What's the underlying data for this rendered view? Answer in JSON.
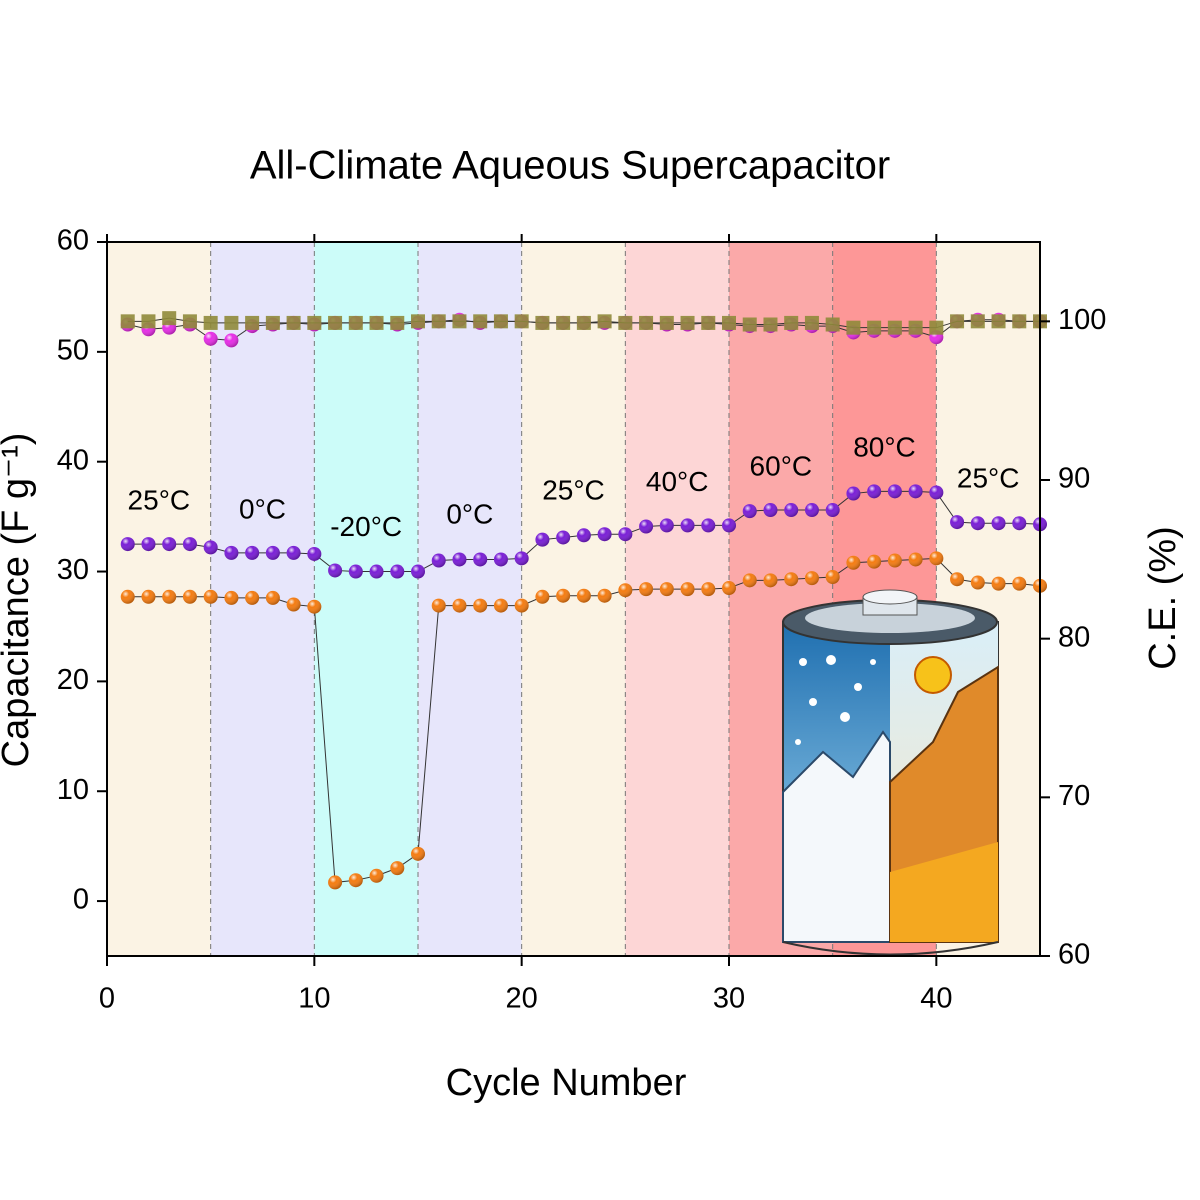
{
  "chart_data": {
    "type": "scatter",
    "title": "All-Climate Aqueous Supercapacitor",
    "x_label": "Cycle Number",
    "y_label": "Capacitance (F g⁻¹)",
    "y2_label": "C.E. (%)",
    "xlim": [
      0,
      45
    ],
    "xticks": [
      0,
      10,
      20,
      30,
      40
    ],
    "ylim": [
      -5,
      60
    ],
    "yticks": [
      0,
      10,
      20,
      30,
      40,
      50,
      60
    ],
    "y2lim": [
      60,
      105
    ],
    "y2ticks": [
      60,
      70,
      80,
      90,
      100
    ],
    "regions": [
      {
        "from": 0,
        "to": 5,
        "color": "#fbf3e4",
        "label": "25°C"
      },
      {
        "from": 5,
        "to": 10,
        "color": "#e7e6fb",
        "label": "0°C"
      },
      {
        "from": 10,
        "to": 15,
        "color": "#ccfcf9",
        "label": "-20°C"
      },
      {
        "from": 15,
        "to": 20,
        "color": "#e7e6fb",
        "label": "0°C"
      },
      {
        "from": 20,
        "to": 25,
        "color": "#fbf3e4",
        "label": "25°C"
      },
      {
        "from": 25,
        "to": 30,
        "color": "#fdd6d6",
        "label": "40°C"
      },
      {
        "from": 30,
        "to": 35,
        "color": "#fba9a9",
        "label": "60°C"
      },
      {
        "from": 35,
        "to": 40,
        "color": "#fd9797",
        "label": "80°C"
      },
      {
        "from": 40,
        "to": 45,
        "color": "#fbf3e4",
        "label": "25°C"
      }
    ],
    "x": [
      1,
      2,
      3,
      4,
      5,
      6,
      7,
      8,
      9,
      10,
      11,
      12,
      13,
      14,
      15,
      16,
      17,
      18,
      19,
      20,
      21,
      22,
      23,
      24,
      25,
      26,
      27,
      28,
      29,
      30,
      31,
      32,
      33,
      34,
      35,
      36,
      37,
      38,
      39,
      40,
      41,
      42,
      43,
      44,
      45
    ],
    "series": [
      {
        "color": "#7a1fd6",
        "marker": "circle",
        "values": [
          32.5,
          32.5,
          32.5,
          32.5,
          32.2,
          31.7,
          31.7,
          31.7,
          31.7,
          31.6,
          30.1,
          30.0,
          30.0,
          30.0,
          30.0,
          31.0,
          31.1,
          31.1,
          31.1,
          31.2,
          32.9,
          33.1,
          33.3,
          33.4,
          33.4,
          34.1,
          34.2,
          34.2,
          34.2,
          34.2,
          35.5,
          35.6,
          35.6,
          35.6,
          35.6,
          37.1,
          37.3,
          37.3,
          37.3,
          37.2,
          34.5,
          34.4,
          34.4,
          34.4,
          34.3
        ]
      },
      {
        "color": "#f47c12",
        "marker": "circle",
        "values": [
          27.7,
          27.7,
          27.7,
          27.7,
          27.7,
          27.6,
          27.6,
          27.6,
          27.0,
          26.8,
          1.7,
          1.9,
          2.3,
          3.0,
          4.3,
          26.9,
          26.9,
          26.9,
          26.9,
          26.9,
          27.7,
          27.8,
          27.8,
          27.8,
          28.3,
          28.4,
          28.4,
          28.4,
          28.4,
          28.5,
          29.2,
          29.2,
          29.3,
          29.4,
          29.5,
          30.8,
          30.9,
          31.0,
          31.1,
          31.2,
          29.3,
          29.0,
          28.9,
          28.9,
          28.7
        ]
      },
      {
        "color": "#e62ee6",
        "marker": "circle",
        "axis": "y2",
        "values": [
          99.8,
          99.5,
          99.6,
          99.8,
          98.9,
          98.8,
          99.7,
          99.8,
          99.9,
          99.8,
          99.9,
          99.9,
          99.9,
          99.8,
          99.9,
          100.0,
          100.1,
          99.9,
          100.0,
          100.0,
          99.9,
          99.9,
          99.9,
          99.9,
          99.9,
          99.9,
          99.8,
          99.8,
          99.9,
          99.8,
          99.7,
          99.7,
          99.8,
          99.7,
          99.7,
          99.3,
          99.4,
          99.4,
          99.4,
          99.0,
          100.0,
          100.1,
          100.1,
          100.0,
          100.0
        ]
      },
      {
        "color": "#8f8a3a",
        "marker": "square",
        "axis": "y2",
        "values": [
          100.0,
          100.0,
          100.2,
          100.0,
          99.9,
          99.9,
          99.9,
          99.9,
          99.9,
          99.9,
          99.9,
          99.9,
          99.9,
          99.9,
          100.0,
          100.0,
          100.0,
          100.0,
          100.0,
          100.0,
          99.9,
          99.9,
          99.9,
          100.0,
          99.9,
          99.9,
          99.9,
          99.9,
          99.9,
          99.9,
          99.8,
          99.8,
          99.9,
          99.9,
          99.8,
          99.6,
          99.6,
          99.6,
          99.6,
          99.6,
          100.0,
          100.0,
          100.0,
          100.0,
          100.0
        ]
      }
    ]
  }
}
